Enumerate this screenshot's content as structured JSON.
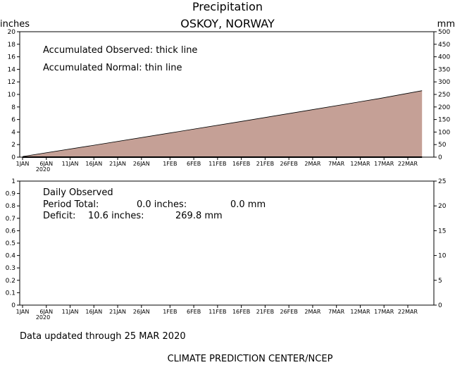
{
  "title": "Precipitation",
  "subtitle": "OSKOY, NORWAY",
  "footer_updated": "Data updated through 25 MAR 2020",
  "footer_source": "CLIMATE PREDICTION CENTER/NCEP",
  "colors": {
    "fill": "#c5a096",
    "axis": "#000000"
  },
  "x_axis": {
    "ticks": [
      {
        "day": 1,
        "label": "1JAN"
      },
      {
        "day": 6,
        "label": "6JAN"
      },
      {
        "day": 11,
        "label": "11JAN"
      },
      {
        "day": 16,
        "label": "16JAN"
      },
      {
        "day": 21,
        "label": "21JAN"
      },
      {
        "day": 26,
        "label": "26JAN"
      },
      {
        "day": 32,
        "label": "1FEB"
      },
      {
        "day": 37,
        "label": "6FEB"
      },
      {
        "day": 42,
        "label": "11FEB"
      },
      {
        "day": 47,
        "label": "16FEB"
      },
      {
        "day": 52,
        "label": "21FEB"
      },
      {
        "day": 57,
        "label": "26FEB"
      },
      {
        "day": 62,
        "label": "2MAR"
      },
      {
        "day": 67,
        "label": "7MAR"
      },
      {
        "day": 72,
        "label": "12MAR"
      },
      {
        "day": 77,
        "label": "17MAR"
      },
      {
        "day": 82,
        "label": "22MAR"
      }
    ],
    "year_label": "2020"
  },
  "chart_data": [
    {
      "type": "area",
      "ylabel_left": "inches",
      "ylabel_right": "mm",
      "ylim_left": [
        0,
        20
      ],
      "ylim_right": [
        0,
        500
      ],
      "yticks_left": [
        "0",
        "2",
        "4",
        "6",
        "8",
        "10",
        "12",
        "14",
        "16",
        "18",
        "20"
      ],
      "yticks_right": [
        "0",
        "50",
        "100",
        "150",
        "200",
        "250",
        "300",
        "350",
        "400",
        "450",
        "500"
      ],
      "legend": [
        "Accumulated Observed: thick line",
        "Accumulated Normal: thin line"
      ],
      "series": [
        {
          "name": "Accumulated Normal",
          "x": [
            "1JAN",
            "16JAN",
            "1FEB",
            "16FEB",
            "1MAR",
            "16MAR",
            "25MAR"
          ],
          "values": [
            0.1,
            1.9,
            3.85,
            5.7,
            7.45,
            9.35,
            10.6
          ]
        },
        {
          "name": "Accumulated Observed",
          "x": [
            "1JAN",
            "25MAR"
          ],
          "values": [
            0.0,
            0.0
          ]
        }
      ]
    },
    {
      "type": "bar",
      "ylim_left": [
        0,
        1
      ],
      "ylim_right": [
        0,
        25
      ],
      "yticks_left": [
        "0",
        "0.1",
        "0.2",
        "0.3",
        "0.4",
        "0.5",
        "0.6",
        "0.7",
        "0.8",
        "0.9",
        "1"
      ],
      "yticks_right": [
        "0",
        "5",
        "10",
        "15",
        "20",
        "25"
      ],
      "series": [
        {
          "name": "Daily Observed",
          "values": []
        }
      ],
      "annotations": {
        "heading": "Daily Observed",
        "period_label": "Period Total:",
        "period_inches": "0.0 inches:",
        "period_mm": "0.0 mm",
        "deficit_label": "Deficit:",
        "deficit_inches": "10.6 inches:",
        "deficit_mm": "269.8 mm"
      }
    }
  ]
}
